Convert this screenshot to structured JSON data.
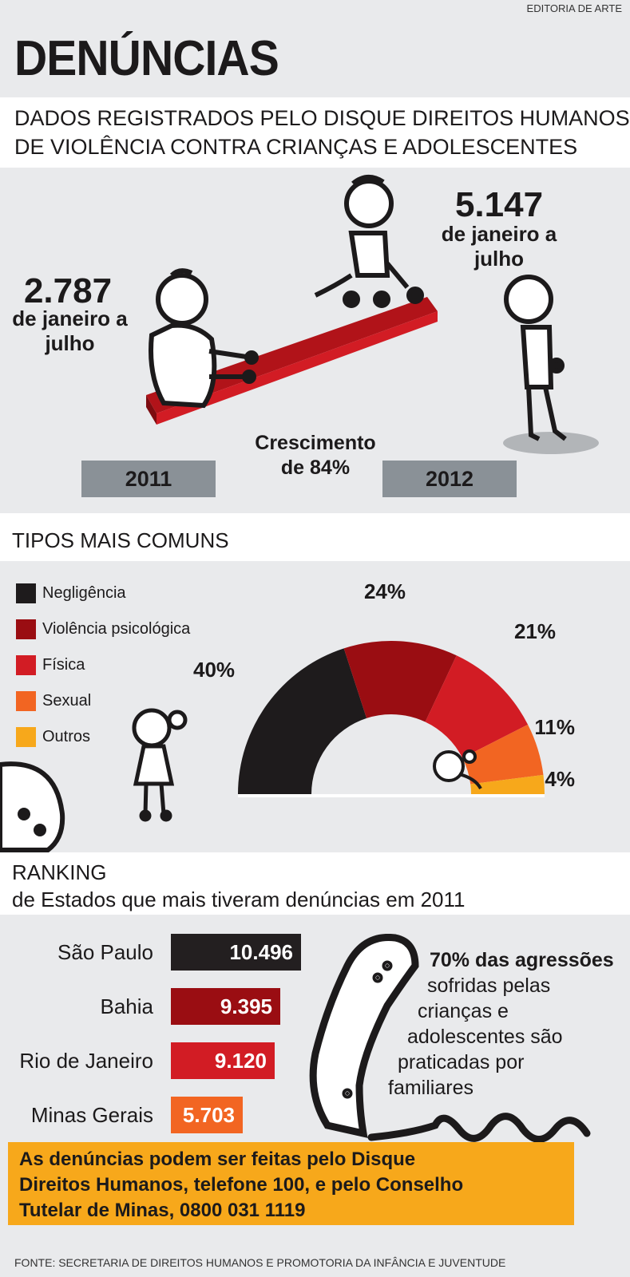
{
  "credit": "EDITORIA DE ARTE",
  "title": "DENÚNCIAS",
  "subtitle": {
    "line1": "DADOS REGISTRADOS PELO DISQUE DIREITOS HUMANOS",
    "line2": "DE VIOLÊNCIA CONTRA CRIANÇAS E ADOLESCENTES"
  },
  "comparison": {
    "y2011": {
      "value": "2.787",
      "period_line1": "de janeiro a",
      "period_line2": "julho",
      "year": "2011"
    },
    "y2012": {
      "value": "5.147",
      "period_line1": "de janeiro a",
      "period_line2": "julho",
      "year": "2012"
    },
    "growth_line1": "Crescimento",
    "growth_line2": "de 84%"
  },
  "types": {
    "heading": "TIPOS MAIS COMUNS",
    "legend": [
      "Negligência",
      "Violência psicológica",
      "Física",
      "Sexual",
      "Outros"
    ],
    "percent_labels": [
      "40%",
      "24%",
      "21%",
      "11%",
      "4%"
    ]
  },
  "chart_data": {
    "type": "pie",
    "style": "half-donut",
    "categories": [
      "Negligência",
      "Violência psicológica",
      "Física",
      "Sexual",
      "Outros"
    ],
    "values": [
      40,
      24,
      21,
      11,
      4
    ],
    "colors": [
      "#1e1b1c",
      "#9a0d12",
      "#d21c24",
      "#f26522",
      "#f7a81b"
    ],
    "unit": "%"
  },
  "ranking": {
    "heading_line1": "RANKING",
    "heading_line2": "de Estados que mais tiveram denúncias em 2011",
    "items": [
      {
        "state": "São Paulo",
        "value": "10.496",
        "number": 10496,
        "color": "#231f20"
      },
      {
        "state": "Bahia",
        "value": "9.395",
        "number": 9395,
        "color": "#9a0d12"
      },
      {
        "state": "Rio de Janeiro",
        "value": "9.120",
        "number": 9120,
        "color": "#d21c24"
      },
      {
        "state": "Minas Gerais",
        "value": "5.703",
        "number": 5703,
        "color": "#f26522"
      }
    ]
  },
  "quote": {
    "bold": "70% das agressões",
    "line2": "sofridas pelas",
    "line3": "crianças e",
    "line4": "adolescentes são",
    "line5": "praticadas por",
    "line6": "familiares"
  },
  "cta": {
    "line1": "As denúncias podem ser feitas pelo Disque",
    "line2": "Direitos Humanos, telefone 100, e pelo Conselho",
    "line3": "Tutelar de Minas, 0800 031 1119"
  },
  "source": "FONTE: SECRETARIA DE DIREITOS HUMANOS E PROMOTORIA DA INFÂNCIA E JUVENTUDE"
}
